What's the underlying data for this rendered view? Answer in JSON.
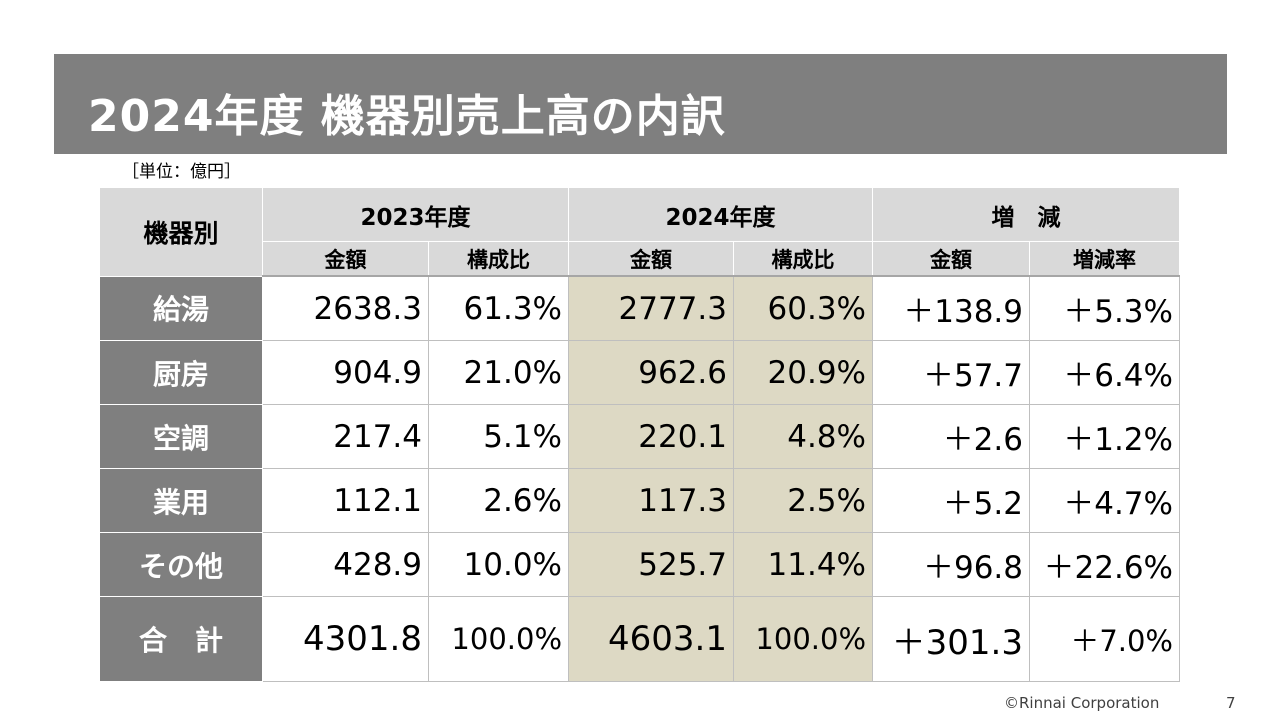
{
  "title": "2024年度 機器別売上高の内訳",
  "unit_note": "［単位：億円］",
  "table": {
    "category_header": "機器別",
    "groups": [
      "2023年度",
      "2024年度",
      "増　減"
    ],
    "sub_headers": [
      "金額",
      "構成比",
      "金額",
      "構成比",
      "金額",
      "増減率"
    ],
    "rows": [
      {
        "label": "給湯",
        "values": [
          "2638.3",
          "61.3%",
          "2777.3",
          "60.3%",
          "＋138.9",
          "＋5.3%"
        ]
      },
      {
        "label": "厨房",
        "values": [
          "904.9",
          "21.0%",
          "962.6",
          "20.9%",
          "＋57.7",
          "＋6.4%"
        ]
      },
      {
        "label": "空調",
        "values": [
          "217.4",
          "5.1%",
          "220.1",
          "4.8%",
          "＋2.6",
          "＋1.2%"
        ]
      },
      {
        "label": "業用",
        "values": [
          "112.1",
          "2.6%",
          "117.3",
          "2.5%",
          "＋5.2",
          "＋4.7%"
        ]
      },
      {
        "label": "その他",
        "values": [
          "428.9",
          "10.0%",
          "525.7",
          "11.4%",
          "＋96.8",
          "＋22.6%"
        ]
      },
      {
        "label": "合　計",
        "values": [
          "4301.8",
          "100.0%",
          "4603.1",
          "100.0%",
          "＋301.3",
          "＋7.0%"
        ]
      }
    ]
  },
  "colors": {
    "title_bg": "#7f7f7f",
    "header_bg": "#d9d9d9",
    "highlight_2024": "#ddd9c4"
  },
  "footer": {
    "copyright": "©Rinnai Corporation",
    "page_number": "7"
  }
}
